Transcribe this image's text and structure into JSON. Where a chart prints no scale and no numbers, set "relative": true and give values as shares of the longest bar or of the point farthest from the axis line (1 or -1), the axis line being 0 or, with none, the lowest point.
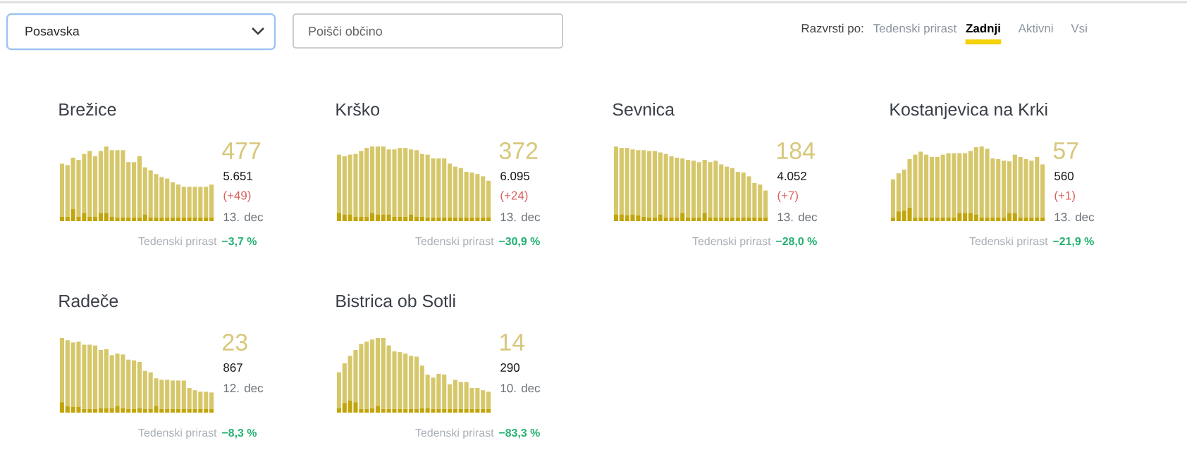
{
  "chart_data": [
    {
      "type": "other",
      "annotations": [
        "Posavska",
        "Poišči občino",
        "Razvrsti po:",
        "Tedenski prirast",
        "Zadnji",
        "Aktivni",
        "Vsi"
      ]
    },
    {
      "type": "bar",
      "title": "Brežice",
      "relative": true,
      "stacked": true,
      "categories": [
        null,
        null,
        null,
        null,
        null,
        null,
        null,
        null,
        null,
        null,
        null,
        null,
        null,
        null,
        null,
        null,
        null,
        null,
        null,
        null,
        null,
        null,
        null,
        null,
        null,
        null,
        null,
        null
      ],
      "series": [
        {
          "color": "#c2a50c",
          "values": [
            0.06,
            0.06,
            0.16,
            0.06,
            0.11,
            0.06,
            0.06,
            0.11,
            0.11,
            0.06,
            0.05,
            0.05,
            0.05,
            0.05,
            0.05,
            0.09,
            0.05,
            0.05,
            0.05,
            0.05,
            0.05,
            0.05,
            0.05,
            0.05,
            0.05,
            0.05,
            0.05,
            0.05
          ]
        },
        {
          "color": "#d6c76b",
          "values": [
            0.71,
            0.69,
            0.69,
            0.76,
            0.79,
            0.88,
            0.81,
            0.83,
            0.89,
            0.89,
            0.9,
            0.9,
            0.74,
            0.74,
            0.82,
            0.63,
            0.63,
            0.58,
            0.54,
            0.52,
            0.47,
            0.44,
            0.41,
            0.41,
            0.41,
            0.41,
            0.41,
            0.44
          ]
        }
      ],
      "annotations": [
        "477",
        "5.651",
        "(+49)",
        "13. dec",
        "Tedenski prirast",
        "−3,7 %"
      ]
    },
    {
      "type": "bar",
      "title": "Krško",
      "relative": true,
      "stacked": true,
      "categories": [
        null,
        null,
        null,
        null,
        null,
        null,
        null,
        null,
        null,
        null,
        null,
        null,
        null,
        null,
        null,
        null,
        null,
        null,
        null,
        null,
        null,
        null,
        null,
        null,
        null,
        null,
        null,
        null
      ],
      "series": [
        {
          "color": "#c2a50c",
          "values": [
            0.11,
            0.09,
            0.09,
            0.06,
            0.06,
            0.06,
            0.11,
            0.09,
            0.09,
            0.09,
            0.06,
            0.06,
            0.06,
            0.09,
            0.06,
            0.06,
            0.05,
            0.05,
            0.05,
            0.05,
            0.05,
            0.05,
            0.05,
            0.05,
            0.05,
            0.05,
            0.05,
            0.05
          ]
        },
        {
          "color": "#d6c76b",
          "values": [
            0.78,
            0.78,
            0.8,
            0.84,
            0.88,
            0.92,
            0.89,
            0.91,
            0.91,
            0.87,
            0.9,
            0.92,
            0.92,
            0.87,
            0.89,
            0.84,
            0.84,
            0.79,
            0.79,
            0.79,
            0.72,
            0.68,
            0.66,
            0.61,
            0.6,
            0.58,
            0.55,
            0.49
          ]
        }
      ],
      "annotations": [
        "372",
        "6.095",
        "(+24)",
        "13. dec",
        "Tedenski prirast",
        "−30,9 %"
      ]
    },
    {
      "type": "bar",
      "title": "Sevnica",
      "relative": true,
      "stacked": true,
      "categories": [
        null,
        null,
        null,
        null,
        null,
        null,
        null,
        null,
        null,
        null,
        null,
        null,
        null,
        null,
        null,
        null,
        null,
        null,
        null,
        null,
        null,
        null,
        null,
        null,
        null,
        null,
        null,
        null
      ],
      "series": [
        {
          "color": "#c2a50c",
          "values": [
            0.09,
            0.09,
            0.08,
            0.09,
            0.08,
            0.06,
            0.05,
            0.05,
            0.09,
            0.05,
            0.05,
            0.05,
            0.11,
            0.05,
            0.05,
            0.05,
            0.11,
            0.05,
            0.05,
            0.05,
            0.05,
            0.05,
            0.05,
            0.05,
            0.05,
            0.05,
            0.05,
            0.05
          ]
        },
        {
          "color": "#d6c76b",
          "values": [
            0.91,
            0.89,
            0.9,
            0.87,
            0.87,
            0.89,
            0.89,
            0.89,
            0.83,
            0.85,
            0.82,
            0.8,
            0.73,
            0.77,
            0.76,
            0.74,
            0.71,
            0.74,
            0.76,
            0.71,
            0.68,
            0.66,
            0.61,
            0.6,
            0.55,
            0.46,
            0.44,
            0.36
          ]
        }
      ],
      "annotations": [
        "184",
        "4.052",
        "(+7)",
        "13. dec",
        "Tedenski prirast",
        "−28,0 %"
      ]
    },
    {
      "type": "bar",
      "title": "Kostanjevica na Krki",
      "relative": true,
      "stacked": true,
      "categories": [
        null,
        null,
        null,
        null,
        null,
        null,
        null,
        null,
        null,
        null,
        null,
        null,
        null,
        null,
        null,
        null,
        null,
        null,
        null,
        null,
        null,
        null,
        null,
        null,
        null,
        null,
        null,
        null
      ],
      "series": [
        {
          "color": "#c2a50c",
          "values": [
            0.05,
            0.13,
            0.14,
            0.18,
            0.05,
            0.05,
            0.05,
            0.05,
            0.05,
            0.05,
            0.05,
            0.05,
            0.11,
            0.11,
            0.11,
            0.09,
            0.05,
            0.05,
            0.05,
            0.05,
            0.05,
            0.11,
            0.11,
            0.05,
            0.05,
            0.05,
            0.05,
            0.05
          ]
        },
        {
          "color": "#d6c76b",
          "values": [
            0.51,
            0.51,
            0.55,
            0.65,
            0.84,
            0.88,
            0.84,
            0.81,
            0.81,
            0.84,
            0.86,
            0.86,
            0.8,
            0.8,
            0.83,
            0.9,
            0.95,
            0.92,
            0.79,
            0.78,
            0.76,
            0.69,
            0.78,
            0.81,
            0.78,
            0.76,
            0.81,
            0.71
          ]
        }
      ],
      "annotations": [
        "57",
        "560",
        "(+1)",
        "13. dec",
        "Tedenski prirast",
        "−21,9 %"
      ]
    },
    {
      "type": "bar",
      "title": "Radeče",
      "relative": true,
      "stacked": true,
      "categories": [
        null,
        null,
        null,
        null,
        null,
        null,
        null,
        null,
        null,
        null,
        null,
        null,
        null,
        null,
        null,
        null,
        null,
        null,
        null,
        null,
        null,
        null,
        null,
        null,
        null,
        null,
        null,
        null
      ],
      "series": [
        {
          "color": "#c2a50c",
          "values": [
            0.14,
            0.09,
            0.08,
            0.08,
            0.05,
            0.05,
            0.05,
            0.06,
            0.06,
            0.06,
            0.09,
            0.06,
            0.05,
            0.05,
            0.06,
            0.05,
            0.05,
            0.09,
            0.05,
            0.05,
            0.05,
            0.05,
            0.05,
            0.05,
            0.05,
            0.05,
            0.05,
            0.05
          ]
        },
        {
          "color": "#d6c76b",
          "values": [
            0.86,
            0.88,
            0.86,
            0.87,
            0.86,
            0.86,
            0.85,
            0.78,
            0.79,
            0.71,
            0.7,
            0.72,
            0.66,
            0.65,
            0.62,
            0.51,
            0.49,
            0.37,
            0.39,
            0.39,
            0.38,
            0.38,
            0.38,
            0.28,
            0.25,
            0.23,
            0.23,
            0.22
          ]
        }
      ],
      "annotations": [
        "23",
        "867",
        "12. dec",
        "Tedenski prirast",
        "−8,3 %"
      ]
    },
    {
      "type": "bar",
      "title": "Bistrica ob Sotli",
      "relative": true,
      "stacked": true,
      "categories": [
        null,
        null,
        null,
        null,
        null,
        null,
        null,
        null,
        null,
        null,
        null,
        null,
        null,
        null,
        null,
        null,
        null,
        null,
        null,
        null,
        null,
        null,
        null,
        null,
        null,
        null,
        null,
        null
      ],
      "series": [
        {
          "color": "#c2a50c",
          "values": [
            0.06,
            0.13,
            0.16,
            0.14,
            0.05,
            0.05,
            0.06,
            0.09,
            0.05,
            0.05,
            0.05,
            0.05,
            0.05,
            0.05,
            0.05,
            0.06,
            0.06,
            0.05,
            0.05,
            0.05,
            0.05,
            0.05,
            0.05,
            0.05,
            0.05,
            0.05,
            0.05,
            0.05
          ]
        },
        {
          "color": "#d6c76b",
          "values": [
            0.48,
            0.53,
            0.6,
            0.7,
            0.87,
            0.9,
            0.92,
            0.91,
            0.95,
            0.85,
            0.77,
            0.76,
            0.74,
            0.71,
            0.7,
            0.57,
            0.45,
            0.42,
            0.47,
            0.46,
            0.33,
            0.39,
            0.36,
            0.36,
            0.28,
            0.28,
            0.25,
            0.23
          ]
        }
      ],
      "annotations": [
        "14",
        "290",
        "10. dec",
        "Tedenski prirast",
        "−83,3 %"
      ]
    }
  ]
}
